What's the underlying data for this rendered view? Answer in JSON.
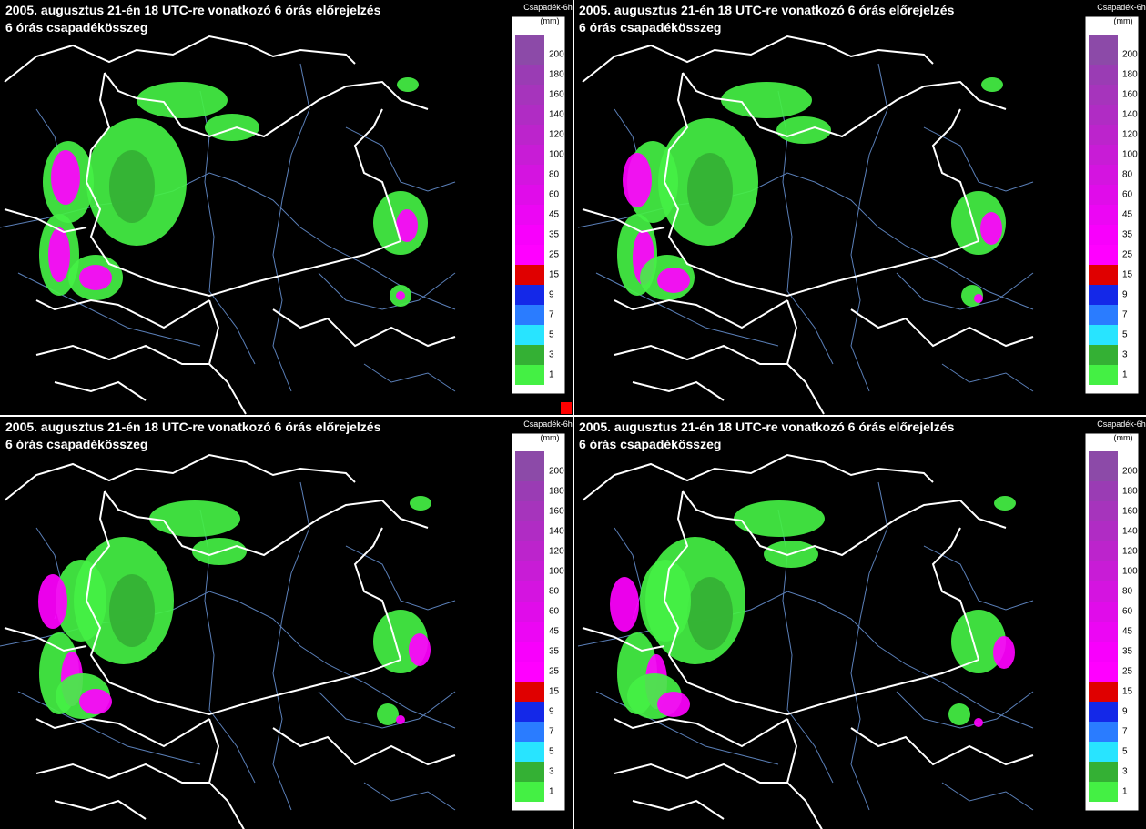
{
  "panels": [
    {
      "title": "2005. augusztus 21-én 18 UTC-re vonatkozó 6 órás előrejelzés",
      "subtitle": "6 órás csapadékösszeg"
    },
    {
      "title": "2005. augusztus 21-én 18 UTC-re vonatkozó 6 órás előrejelzés",
      "subtitle": "6 órás csapadékösszeg"
    },
    {
      "title": "2005. augusztus 21-én 18 UTC-re vonatkozó 6 órás előrejelzés",
      "subtitle": "6 órás csapadékösszeg"
    },
    {
      "title": "2005. augusztus 21-én 18 UTC-re vonatkozó 6 órás előrejelzés",
      "subtitle": "6 órás csapadékösszeg"
    }
  ],
  "legend": {
    "title": "Csapadék-6h",
    "unit": "(mm)",
    "levels": [
      200,
      180,
      160,
      140,
      120,
      100,
      80,
      60,
      45,
      35,
      25,
      15,
      9,
      7,
      5,
      3,
      1
    ],
    "colors": [
      "#8c4aa8",
      "#9a3cb4",
      "#a634bc",
      "#b02cc4",
      "#bc24cc",
      "#c81cd6",
      "#d414e0",
      "#e00cea",
      "#ec06f4",
      "#f800fc",
      "#ff00ff",
      "#e00000",
      "#1428e8",
      "#2a7cff",
      "#28e4ff",
      "#34b034",
      "#44f044"
    ]
  }
}
